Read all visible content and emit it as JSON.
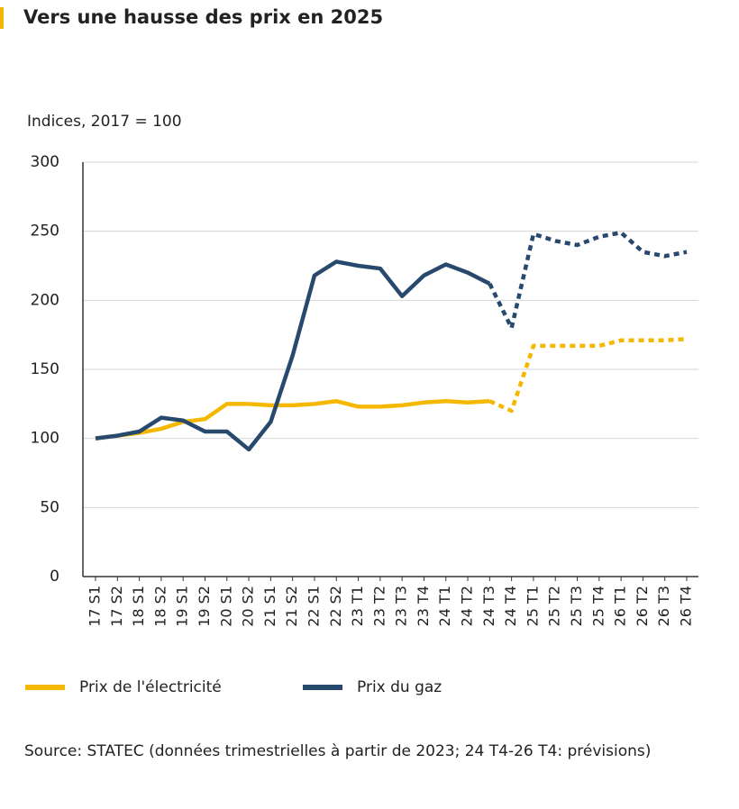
{
  "chart_data": {
    "type": "line",
    "title": "Vers une hausse des prix en 2025",
    "y_label": "Indices, 2017 = 100",
    "source": "Source: STATEC (données trimestrielles à partir de 2023; 24 T4-26 T4: prévisions)",
    "categories": [
      "17 S1",
      "17 S2",
      "18 S1",
      "18 S2",
      "19 S1",
      "19 S2",
      "20 S1",
      "20 S2",
      "21 S1",
      "21 S2",
      "22 S1",
      "22 S2",
      "23 T1",
      "23 T2",
      "23 T3",
      "23 T4",
      "24 T1",
      "24 T2",
      "24 T3",
      "24 T4",
      "25 T1",
      "25 T2",
      "25 T3",
      "25 T4",
      "26 T1",
      "26 T2",
      "26 T3",
      "26 T4"
    ],
    "series": [
      {
        "name": "Prix de l'électricité",
        "color": "#f5b800",
        "values": [
          100,
          102,
          104,
          107,
          112,
          114,
          125,
          125,
          124,
          124,
          125,
          127,
          123,
          123,
          124,
          126,
          127,
          126,
          127,
          120,
          167,
          167,
          167,
          167,
          171,
          171,
          171,
          172
        ]
      },
      {
        "name": "Prix du gaz",
        "color": "#27496d",
        "values": [
          100,
          102,
          105,
          115,
          113,
          105,
          105,
          92,
          112,
          160,
          218,
          228,
          225,
          223,
          203,
          218,
          226,
          220,
          212,
          180,
          248,
          243,
          240,
          246,
          249,
          235,
          232,
          235
        ]
      }
    ],
    "dashed_from": 18,
    "ylim": [
      0,
      300
    ],
    "yticks": [
      0,
      50,
      100,
      150,
      200,
      250,
      300
    ],
    "grid": true
  }
}
